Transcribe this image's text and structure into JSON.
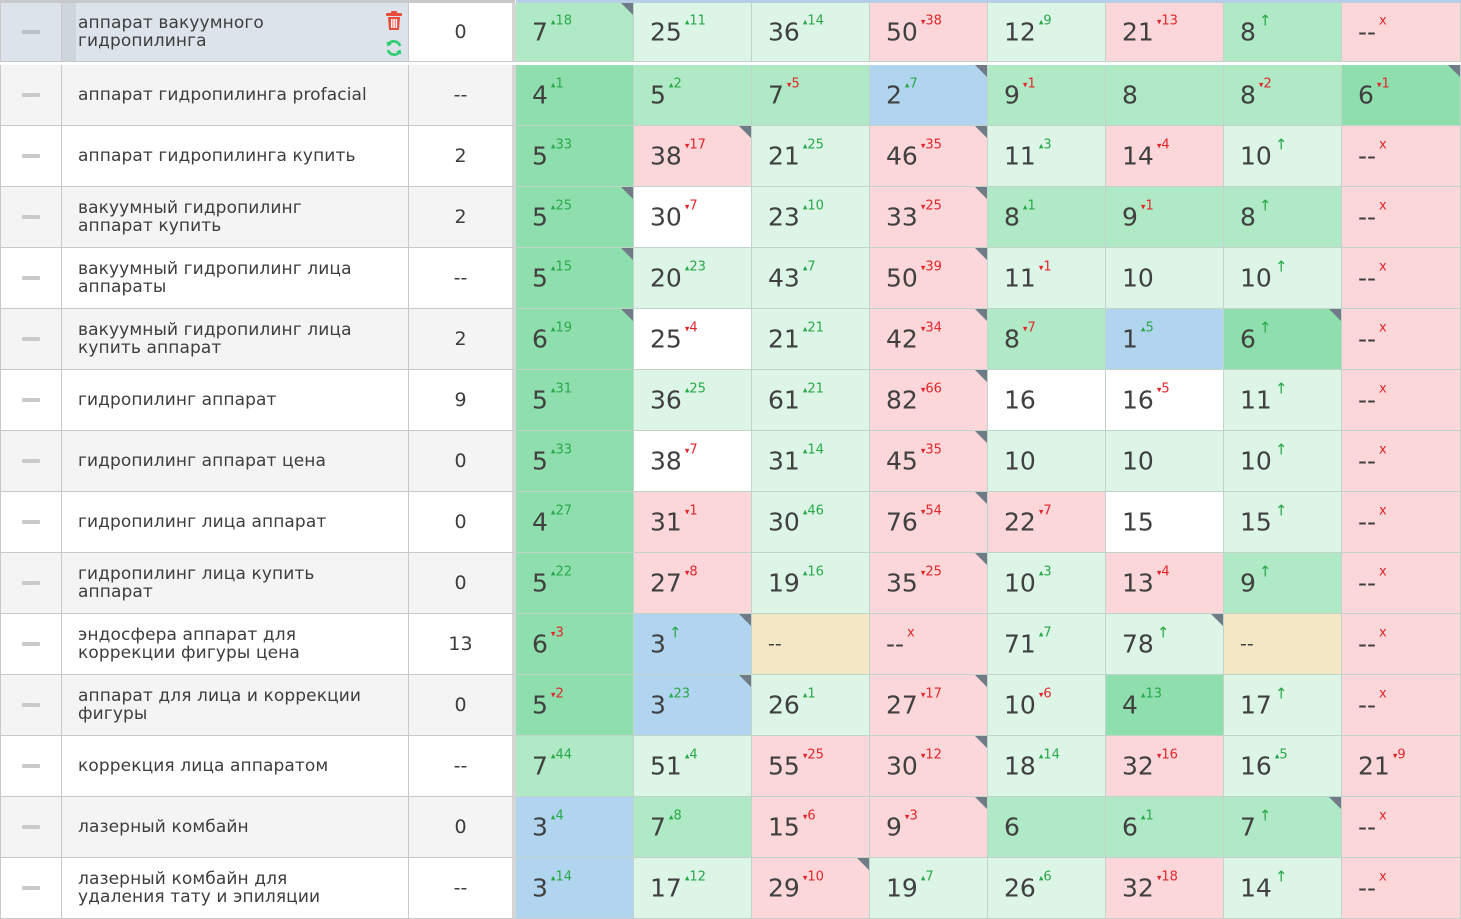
{
  "colors": {
    "dark_green": "#8fdfae",
    "mid_green": "#b0e9c5",
    "light_green": "#dcf5e6",
    "pink": "#fbd7d9",
    "blue": "#b1d5ef",
    "white": "#ffffff",
    "yellow": "#f3e7c6",
    "up": "#2aa84a",
    "down": "#e2262c",
    "delete": "#e74c3c",
    "refresh": "#2ecc71"
  },
  "icons": {
    "delete": "trash-icon",
    "refresh": "refresh-icon",
    "handle": "drag-handle-icon"
  },
  "rows": [
    {
      "keyword": "аппарат вакуумного гидропилинга",
      "freq": "0",
      "selected": true,
      "cells": [
        [
          "7",
          "18",
          "up",
          "mg",
          1
        ],
        [
          "25",
          "11",
          "up",
          "lg",
          0
        ],
        [
          "36",
          "14",
          "up",
          "lg",
          0
        ],
        [
          "50",
          "38",
          "down",
          "pk",
          0
        ],
        [
          "12",
          "9",
          "up",
          "lg",
          0
        ],
        [
          "21",
          "13",
          "down",
          "pk",
          0
        ],
        [
          "8",
          "↑",
          "new",
          "mg",
          0
        ],
        [
          "--",
          "x",
          "gone",
          "pk",
          0
        ]
      ]
    },
    {
      "keyword": "аппарат гидропилинга profacial",
      "freq": "--",
      "cells": [
        [
          "4",
          "1",
          "up",
          "dg",
          0
        ],
        [
          "5",
          "2",
          "up",
          "mg",
          0
        ],
        [
          "7",
          "5",
          "down",
          "mg",
          0
        ],
        [
          "2",
          "7",
          "up",
          "bl",
          1
        ],
        [
          "9",
          "1",
          "down",
          "mg",
          0
        ],
        [
          "8",
          "",
          "",
          "mg",
          0
        ],
        [
          "8",
          "2",
          "down",
          "mg",
          0
        ],
        [
          "6",
          "1",
          "down",
          "dg",
          1
        ]
      ]
    },
    {
      "keyword": "аппарат гидропилинга купить",
      "freq": "2",
      "cells": [
        [
          "5",
          "33",
          "up",
          "dg",
          0
        ],
        [
          "38",
          "17",
          "down",
          "pk",
          1
        ],
        [
          "21",
          "25",
          "up",
          "lg",
          0
        ],
        [
          "46",
          "35",
          "down",
          "pk",
          1
        ],
        [
          "11",
          "3",
          "up",
          "lg",
          0
        ],
        [
          "14",
          "4",
          "down",
          "pk",
          0
        ],
        [
          "10",
          "↑",
          "new",
          "lg",
          0
        ],
        [
          "--",
          "x",
          "gone",
          "pk",
          0
        ]
      ]
    },
    {
      "keyword": "вакуумный гидропилинг аппарат купить",
      "freq": "2",
      "cells": [
        [
          "5",
          "25",
          "up",
          "dg",
          1
        ],
        [
          "30",
          "7",
          "down",
          "wh",
          0
        ],
        [
          "23",
          "10",
          "up",
          "lg",
          0
        ],
        [
          "33",
          "25",
          "down",
          "pk",
          1
        ],
        [
          "8",
          "1",
          "up",
          "mg",
          0
        ],
        [
          "9",
          "1",
          "down",
          "mg",
          0
        ],
        [
          "8",
          "↑",
          "new",
          "mg",
          0
        ],
        [
          "--",
          "x",
          "gone",
          "pk",
          0
        ]
      ]
    },
    {
      "keyword": "вакуумный гидропилинг лица аппараты",
      "freq": "--",
      "cells": [
        [
          "5",
          "15",
          "up",
          "dg",
          1
        ],
        [
          "20",
          "23",
          "up",
          "lg",
          0
        ],
        [
          "43",
          "7",
          "up",
          "lg",
          0
        ],
        [
          "50",
          "39",
          "down",
          "pk",
          1
        ],
        [
          "11",
          "1",
          "down",
          "lg",
          0
        ],
        [
          "10",
          "",
          "",
          "lg",
          0
        ],
        [
          "10",
          "↑",
          "new",
          "lg",
          0
        ],
        [
          "--",
          "x",
          "gone",
          "pk",
          0
        ]
      ]
    },
    {
      "keyword": "вакуумный гидропилинг лица купить аппарат",
      "freq": "2",
      "cells": [
        [
          "6",
          "19",
          "up",
          "dg",
          1
        ],
        [
          "25",
          "4",
          "down",
          "wh",
          0
        ],
        [
          "21",
          "21",
          "up",
          "lg",
          0
        ],
        [
          "42",
          "34",
          "down",
          "pk",
          1
        ],
        [
          "8",
          "7",
          "down",
          "mg",
          0
        ],
        [
          "1",
          "5",
          "up",
          "bl",
          0
        ],
        [
          "6",
          "↑",
          "new",
          "dg",
          1
        ],
        [
          "--",
          "x",
          "gone",
          "pk",
          0
        ]
      ]
    },
    {
      "keyword": "гидропилинг аппарат",
      "freq": "9",
      "cells": [
        [
          "5",
          "31",
          "up",
          "dg",
          0
        ],
        [
          "36",
          "25",
          "up",
          "lg",
          0
        ],
        [
          "61",
          "21",
          "up",
          "lg",
          0
        ],
        [
          "82",
          "66",
          "down",
          "pk",
          1
        ],
        [
          "16",
          "",
          "",
          "wh",
          0
        ],
        [
          "16",
          "5",
          "down",
          "wh",
          0
        ],
        [
          "11",
          "↑",
          "new",
          "lg",
          0
        ],
        [
          "--",
          "x",
          "gone",
          "pk",
          0
        ]
      ]
    },
    {
      "keyword": "гидропилинг аппарат цена",
      "freq": "0",
      "cells": [
        [
          "5",
          "33",
          "up",
          "dg",
          0
        ],
        [
          "38",
          "7",
          "down",
          "wh",
          0
        ],
        [
          "31",
          "14",
          "up",
          "lg",
          0
        ],
        [
          "45",
          "35",
          "down",
          "pk",
          1
        ],
        [
          "10",
          "",
          "",
          "lg",
          0
        ],
        [
          "10",
          "",
          "",
          "lg",
          0
        ],
        [
          "10",
          "↑",
          "new",
          "lg",
          0
        ],
        [
          "--",
          "x",
          "gone",
          "pk",
          0
        ]
      ]
    },
    {
      "keyword": "гидропилинг лица аппарат",
      "freq": "0",
      "cells": [
        [
          "4",
          "27",
          "up",
          "dg",
          0
        ],
        [
          "31",
          "1",
          "down",
          "pk",
          0
        ],
        [
          "30",
          "46",
          "up",
          "lg",
          0
        ],
        [
          "76",
          "54",
          "down",
          "pk",
          1
        ],
        [
          "22",
          "7",
          "down",
          "pk",
          0
        ],
        [
          "15",
          "",
          "",
          "wh",
          0
        ],
        [
          "15",
          "↑",
          "new",
          "lg",
          0
        ],
        [
          "--",
          "x",
          "gone",
          "pk",
          0
        ]
      ]
    },
    {
      "keyword": "гидропилинг лица купить аппарат",
      "freq": "0",
      "cells": [
        [
          "5",
          "22",
          "up",
          "dg",
          0
        ],
        [
          "27",
          "8",
          "down",
          "pk",
          0
        ],
        [
          "19",
          "16",
          "up",
          "lg",
          0
        ],
        [
          "35",
          "25",
          "down",
          "pk",
          1
        ],
        [
          "10",
          "3",
          "up",
          "lg",
          0
        ],
        [
          "13",
          "4",
          "down",
          "pk",
          0
        ],
        [
          "9",
          "↑",
          "new",
          "mg",
          0
        ],
        [
          "--",
          "x",
          "gone",
          "pk",
          0
        ]
      ]
    },
    {
      "keyword": "эндосфера аппарат для коррекции фигуры цена",
      "freq": "13",
      "cells": [
        [
          "6",
          "3",
          "down",
          "dg",
          0
        ],
        [
          "3",
          "↑",
          "new",
          "bl",
          1
        ],
        [
          "--",
          "",
          "",
          "yl",
          0
        ],
        [
          "--",
          "x",
          "gone",
          "pk",
          0
        ],
        [
          "71",
          "7",
          "up",
          "lg",
          0
        ],
        [
          "78",
          "↑",
          "new",
          "lg",
          1
        ],
        [
          "--",
          "",
          "",
          "yl",
          0
        ],
        [
          "--",
          "x",
          "gone",
          "pk",
          0
        ]
      ]
    },
    {
      "keyword": "аппарат для лица и коррекции фигуры",
      "freq": "0",
      "cells": [
        [
          "5",
          "2",
          "down",
          "dg",
          0
        ],
        [
          "3",
          "23",
          "up",
          "bl",
          1
        ],
        [
          "26",
          "1",
          "up",
          "lg",
          0
        ],
        [
          "27",
          "17",
          "down",
          "pk",
          1
        ],
        [
          "10",
          "6",
          "down",
          "lg",
          0
        ],
        [
          "4",
          "13",
          "up",
          "dg",
          0
        ],
        [
          "17",
          "↑",
          "new",
          "lg",
          0
        ],
        [
          "--",
          "x",
          "gone",
          "pk",
          0
        ]
      ]
    },
    {
      "keyword": "коррекция лица аппаратом",
      "freq": "--",
      "cells": [
        [
          "7",
          "44",
          "up",
          "mg",
          0
        ],
        [
          "51",
          "4",
          "up",
          "lg",
          0
        ],
        [
          "55",
          "25",
          "down",
          "pk",
          0
        ],
        [
          "30",
          "12",
          "down",
          "pk",
          1
        ],
        [
          "18",
          "14",
          "up",
          "lg",
          0
        ],
        [
          "32",
          "16",
          "down",
          "pk",
          0
        ],
        [
          "16",
          "5",
          "up",
          "lg",
          0
        ],
        [
          "21",
          "9",
          "down",
          "pk",
          0
        ]
      ]
    },
    {
      "keyword": "лазерный комбайн",
      "freq": "0",
      "cells": [
        [
          "3",
          "4",
          "up",
          "bl",
          0
        ],
        [
          "7",
          "8",
          "up",
          "mg",
          0
        ],
        [
          "15",
          "6",
          "down",
          "pk",
          0
        ],
        [
          "9",
          "3",
          "down",
          "pk",
          1
        ],
        [
          "6",
          "",
          "",
          "mg",
          0
        ],
        [
          "6",
          "1",
          "up",
          "mg",
          0
        ],
        [
          "7",
          "↑",
          "new",
          "mg",
          1
        ],
        [
          "--",
          "x",
          "gone",
          "pk",
          0
        ]
      ]
    },
    {
      "keyword": "лазерный комбайн для удаления тату и эпиляции",
      "freq": "--",
      "cells": [
        [
          "3",
          "14",
          "up",
          "bl",
          0
        ],
        [
          "17",
          "12",
          "up",
          "lg",
          0
        ],
        [
          "29",
          "10",
          "down",
          "pk",
          1
        ],
        [
          "19",
          "7",
          "up",
          "lg",
          0
        ],
        [
          "26",
          "6",
          "up",
          "lg",
          0
        ],
        [
          "32",
          "18",
          "down",
          "pk",
          0
        ],
        [
          "14",
          "↑",
          "new",
          "lg",
          0
        ],
        [
          "--",
          "x",
          "gone",
          "pk",
          0
        ]
      ]
    }
  ]
}
